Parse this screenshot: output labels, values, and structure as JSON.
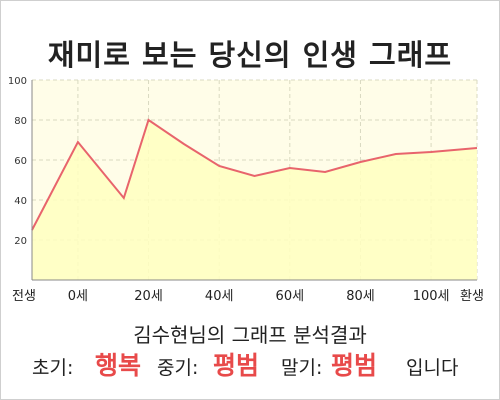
{
  "title": "재미로 보는 당신의 인생 그래프",
  "chart_data": {
    "type": "area",
    "title": "재미로 보는 당신의 인생 그래프",
    "x_categories": [
      "전생",
      "0세",
      "20세",
      "40세",
      "60세",
      "80세",
      "100세",
      "환생"
    ],
    "ylim": [
      0,
      100
    ],
    "yticks": [
      20,
      40,
      60,
      80,
      100
    ],
    "grid": true,
    "series": [
      {
        "x": [
          -13,
          0,
          13,
          20,
          30,
          40,
          50,
          60,
          70,
          80,
          90,
          100,
          113
        ],
        "y": [
          25,
          69,
          41,
          80,
          68,
          57,
          52,
          56,
          54,
          59,
          63,
          64,
          66
        ]
      }
    ],
    "colors": {
      "line": "#e8646c",
      "fill": "#ffffc0",
      "plot_bg": "#fffde8",
      "grid": "#d9d9c0"
    }
  },
  "result": {
    "heading": "김수현님의 그래프 분석결과",
    "early_label": "초기:",
    "early_value": "행복",
    "mid_label": "중기:",
    "mid_value": "평범",
    "late_label": "말기:",
    "late_value": "평범",
    "suffix": "입니다"
  }
}
